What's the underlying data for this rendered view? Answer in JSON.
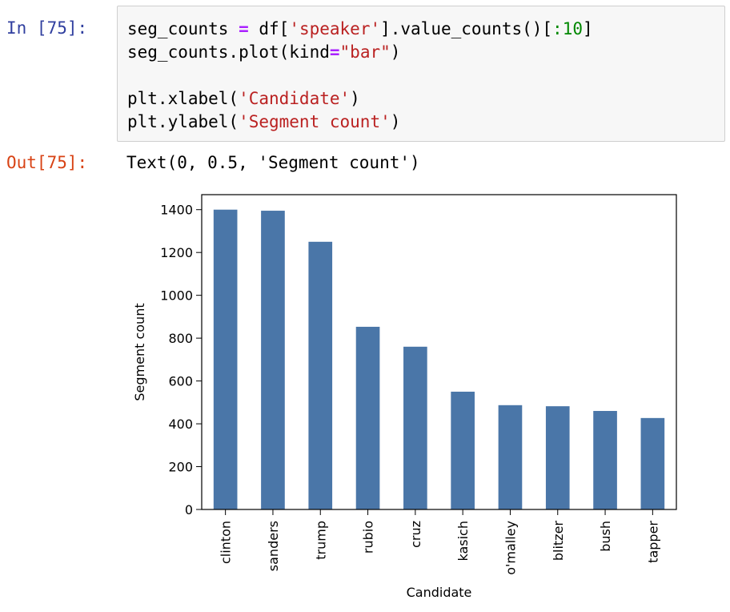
{
  "input_cell": {
    "prompt": "In [75]:",
    "lines": [
      [
        {
          "t": "seg_counts "
        },
        {
          "t": "=",
          "c": "op"
        },
        {
          "t": " df["
        },
        {
          "t": "'speaker'",
          "c": "str"
        },
        {
          "t": "].value_counts()["
        },
        {
          "t": ":10",
          "c": "num"
        },
        {
          "t": "]"
        }
      ],
      [
        {
          "t": "seg_counts.plot(kind"
        },
        {
          "t": "=",
          "c": "op"
        },
        {
          "t": "\"bar\"",
          "c": "str"
        },
        {
          "t": ")"
        }
      ],
      [
        {
          "t": ""
        }
      ],
      [
        {
          "t": "plt.xlabel("
        },
        {
          "t": "'Candidate'",
          "c": "str"
        },
        {
          "t": ")"
        }
      ],
      [
        {
          "t": "plt.ylabel("
        },
        {
          "t": "'Segment count'",
          "c": "str"
        },
        {
          "t": ")"
        }
      ]
    ]
  },
  "output_cell": {
    "prompt": "Out[75]:",
    "text": "Text(0, 0.5, 'Segment count')"
  },
  "chart_data": {
    "type": "bar",
    "categories": [
      "clinton",
      "sanders",
      "trump",
      "rubio",
      "cruz",
      "kasich",
      "o'malley",
      "blitzer",
      "bush",
      "tapper"
    ],
    "values": [
      1400,
      1395,
      1250,
      853,
      760,
      550,
      487,
      482,
      460,
      427
    ],
    "xlabel": "Candidate",
    "ylabel": "Segment count",
    "ylim": [
      0,
      1470
    ],
    "yticks": [
      0,
      200,
      400,
      600,
      800,
      1000,
      1200,
      1400
    ],
    "bar_color": "#4a76a8",
    "grid": false
  }
}
